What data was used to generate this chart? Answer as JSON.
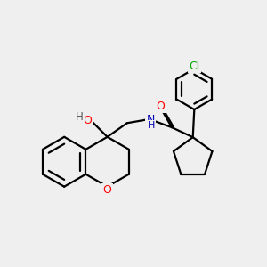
{
  "bg_color": "#efefef",
  "bond_color": "#000000",
  "bond_width": 1.6,
  "atom_colors": {
    "O": "#ff0000",
    "N": "#0000bb",
    "Cl": "#00aa00",
    "H": "#555555"
  },
  "font_size": 8.5,
  "figsize": [
    3.0,
    3.0
  ],
  "dpi": 100
}
